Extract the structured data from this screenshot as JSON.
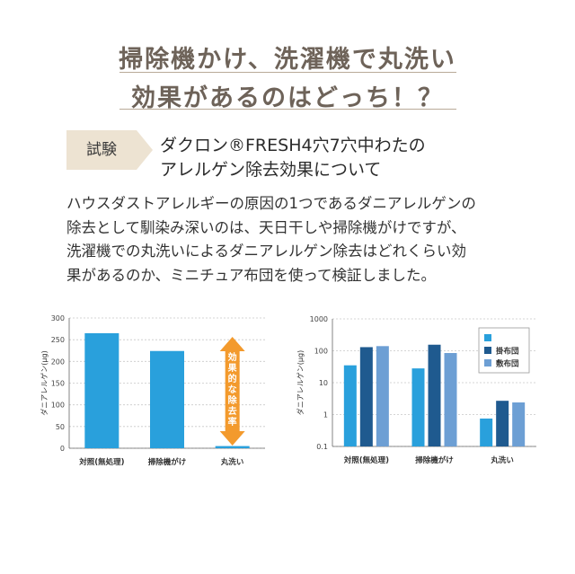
{
  "title": {
    "line1": "掃除機かけ、洗濯機で丸洗い",
    "line2": "効果があるのはどっち！？"
  },
  "badge": {
    "label": "試験"
  },
  "heading": {
    "line1": "ダクロン®FRESH4穴7穴中わたの",
    "line2": "アレルゲン除去効果について"
  },
  "body": {
    "lines": [
      "ハウスダストアレルギーの原因の1つであるダニアレルゲンの",
      "除去として馴染み深いのは、天日干しや掃除機がけですが、",
      "洗濯機での丸洗いによるダニアレルゲン除去はどれくらい効",
      "果があるのか、ミニチュア布団を使って検証しました。"
    ]
  },
  "colors": {
    "title": "#6e6359",
    "badge": "#ede3d2",
    "bar_light": "#29a0dc",
    "bar_dark": "#1f5a8f",
    "bar_mid": "#6d9fd4",
    "arrow": "#f39a2d"
  },
  "chart_data": [
    {
      "type": "bar",
      "categories": [
        "対照(無処理)",
        "掃除機がけ",
        "丸洗い"
      ],
      "series": [
        {
          "values": [
            265,
            224,
            5
          ]
        }
      ],
      "ylabel": "ダニアレルゲン(μg)",
      "ylim": [
        0,
        300
      ],
      "yticks": [
        "0",
        "50",
        "100",
        "150",
        "200",
        "250",
        "300"
      ],
      "annotation": "効果的な除去率",
      "grid": true
    },
    {
      "type": "bar",
      "scale": "log",
      "categories": [
        "対照(無処理)",
        "掃除機がけ",
        "丸洗い"
      ],
      "series": [
        {
          "name": "",
          "values": [
            35,
            28,
            0.75
          ]
        },
        {
          "name": "掛布団",
          "values": [
            130,
            155,
            2.7
          ]
        },
        {
          "name": "敷布団",
          "values": [
            140,
            85,
            2.4
          ]
        }
      ],
      "ylabel": "ダニアレルゲン(μg)",
      "ylim": [
        0.1,
        1000
      ],
      "yticks": [
        "0.1",
        "1",
        "10",
        "100",
        "1000"
      ],
      "legend": "top-right",
      "grid": true
    }
  ]
}
